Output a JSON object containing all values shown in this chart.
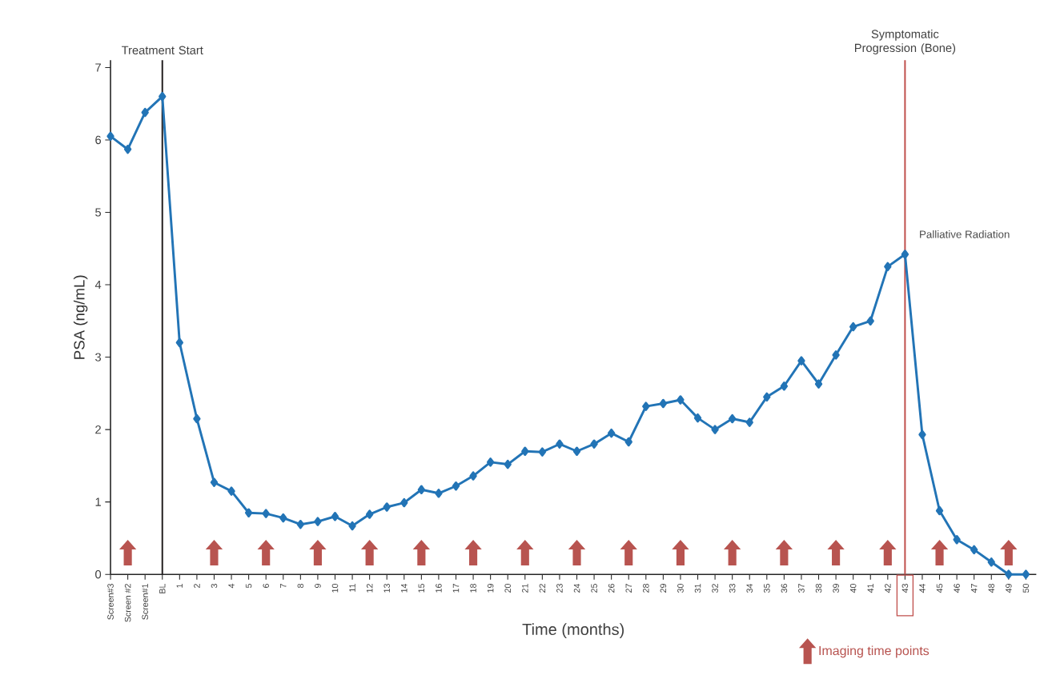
{
  "chart_data": {
    "type": "line",
    "xlabel": "Time (months)",
    "ylabel": "PSA (ng/mL)",
    "categories": [
      "Screen#3",
      "Screen #2",
      "Screen#1",
      "BL",
      "1",
      "2",
      "3",
      "4",
      "5",
      "6",
      "7",
      "8",
      "9",
      "10",
      "11",
      "12",
      "13",
      "14",
      "15",
      "16",
      "17",
      "18",
      "19",
      "20",
      "21",
      "22",
      "23",
      "24",
      "25",
      "26",
      "27",
      "28",
      "29",
      "30",
      "31",
      "32",
      "33",
      "34",
      "35",
      "36",
      "37",
      "38",
      "39",
      "40",
      "41",
      "42",
      "43",
      "44",
      "45",
      "46",
      "47",
      "48",
      "49",
      "50"
    ],
    "series": [
      {
        "color": "#2274b6",
        "values": [
          6.05,
          5.87,
          6.38,
          6.6,
          3.2,
          2.15,
          1.27,
          1.15,
          0.85,
          0.84,
          0.78,
          0.69,
          0.73,
          0.8,
          0.67,
          0.83,
          0.93,
          0.99,
          1.17,
          1.12,
          1.22,
          1.36,
          1.55,
          1.52,
          1.7,
          1.69,
          1.8,
          1.7,
          1.8,
          1.95,
          1.83,
          2.32,
          2.36,
          2.41,
          2.16,
          2.0,
          2.15,
          2.1,
          2.45,
          2.6,
          2.95,
          2.63,
          3.03,
          3.42,
          3.5,
          4.25,
          4.42,
          1.93,
          0.88,
          0.48,
          0.34,
          0.17,
          0.0,
          0.0
        ]
      },
      {
        "type": "scatter",
        "name": "Imaging time points",
        "color": "#b85450",
        "x": [
          "Screen #2",
          "3",
          "6",
          "9",
          "12",
          "15",
          "18",
          "21",
          "24",
          "27",
          "30",
          "33",
          "36",
          "39",
          "42",
          "45",
          "49"
        ],
        "values": [
          0.3,
          0.3,
          0.3,
          0.3,
          0.3,
          0.3,
          0.3,
          0.3,
          0.3,
          0.3,
          0.3,
          0.3,
          0.3,
          0.3,
          0.3,
          0.3,
          0.3
        ]
      }
    ],
    "ylim": [
      0,
      7.1
    ],
    "yticks": [
      0,
      1,
      2,
      3,
      4,
      5,
      6,
      7
    ],
    "marker": "diamond",
    "line_style": "solid",
    "legend": "bottom right",
    "ref_lines": [
      {
        "axis": "x",
        "value": "BL",
        "label": "Treatment Start",
        "color": "#231f20"
      },
      {
        "axis": "x",
        "value": "43",
        "label": "Symptomatic Progression (Bone)",
        "color": "#c0504d"
      }
    ],
    "annotations": [
      {
        "text": "Palliative Radiation",
        "x": "43",
        "y": 4.42
      }
    ]
  }
}
